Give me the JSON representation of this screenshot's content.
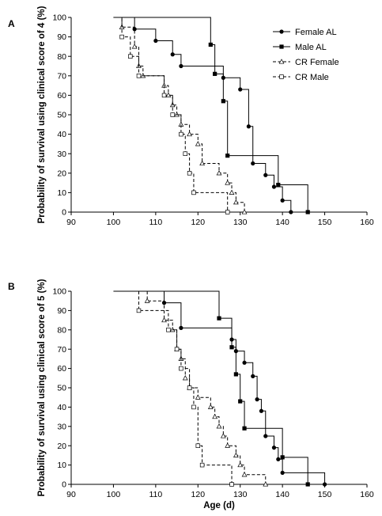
{
  "chart_data": [
    {
      "type": "line",
      "subtype": "kaplan-meier step",
      "panel_label": "A",
      "xlabel": "",
      "ylabel": "Probability of survival using clinical score of 4 (%)",
      "xlim": [
        90,
        160
      ],
      "ylim": [
        0,
        100
      ],
      "xticks": [
        90,
        100,
        110,
        120,
        130,
        140,
        150,
        160
      ],
      "yticks": [
        0,
        10,
        20,
        30,
        40,
        50,
        60,
        70,
        80,
        90,
        100
      ],
      "grid": false,
      "legend_position": "top-right",
      "series": [
        {
          "name": "Female AL",
          "line_style": "solid",
          "marker": "filled-circle",
          "points": [
            [
              105,
              100
            ],
            [
              105,
              94
            ],
            [
              110,
              94
            ],
            [
              110,
              88
            ],
            [
              114,
              88
            ],
            [
              114,
              81
            ],
            [
              116,
              81
            ],
            [
              116,
              75
            ],
            [
              126,
              75
            ],
            [
              126,
              69
            ],
            [
              130,
              69
            ],
            [
              130,
              63
            ],
            [
              132,
              63
            ],
            [
              132,
              44
            ],
            [
              133,
              44
            ],
            [
              133,
              25
            ],
            [
              136,
              25
            ],
            [
              136,
              19
            ],
            [
              138,
              19
            ],
            [
              138,
              13
            ],
            [
              140,
              13
            ],
            [
              140,
              6
            ],
            [
              142,
              6
            ],
            [
              142,
              0
            ]
          ]
        },
        {
          "name": "Male AL",
          "line_style": "solid",
          "marker": "filled-square",
          "points": [
            [
              100,
              100
            ],
            [
              123,
              100
            ],
            [
              123,
              86
            ],
            [
              124,
              86
            ],
            [
              124,
              71
            ],
            [
              126,
              71
            ],
            [
              126,
              57
            ],
            [
              127,
              57
            ],
            [
              127,
              29
            ],
            [
              139,
              29
            ],
            [
              139,
              14
            ],
            [
              146,
              14
            ],
            [
              146,
              0
            ]
          ]
        },
        {
          "name": "CR Female",
          "line_style": "dashed",
          "marker": "open-triangle",
          "points": [
            [
              102,
              100
            ],
            [
              102,
              95
            ],
            [
              105,
              95
            ],
            [
              105,
              85
            ],
            [
              106,
              85
            ],
            [
              106,
              75
            ],
            [
              107,
              75
            ],
            [
              107,
              70
            ],
            [
              112,
              70
            ],
            [
              112,
              65
            ],
            [
              113,
              65
            ],
            [
              113,
              60
            ],
            [
              114,
              60
            ],
            [
              114,
              55
            ],
            [
              115,
              55
            ],
            [
              115,
              50
            ],
            [
              116,
              50
            ],
            [
              116,
              45
            ],
            [
              118,
              45
            ],
            [
              118,
              40
            ],
            [
              120,
              40
            ],
            [
              120,
              35
            ],
            [
              121,
              35
            ],
            [
              121,
              25
            ],
            [
              125,
              25
            ],
            [
              125,
              20
            ],
            [
              127,
              20
            ],
            [
              127,
              15
            ],
            [
              128,
              15
            ],
            [
              128,
              10
            ],
            [
              129,
              10
            ],
            [
              129,
              5
            ],
            [
              131,
              5
            ],
            [
              131,
              0
            ]
          ]
        },
        {
          "name": "CR Male",
          "line_style": "dashed",
          "marker": "open-square",
          "points": [
            [
              100,
              100
            ],
            [
              102,
              100
            ],
            [
              102,
              90
            ],
            [
              104,
              90
            ],
            [
              104,
              80
            ],
            [
              106,
              80
            ],
            [
              106,
              70
            ],
            [
              112,
              70
            ],
            [
              112,
              60
            ],
            [
              114,
              60
            ],
            [
              114,
              50
            ],
            [
              116,
              50
            ],
            [
              116,
              40
            ],
            [
              117,
              40
            ],
            [
              117,
              30
            ],
            [
              118,
              30
            ],
            [
              118,
              20
            ],
            [
              119,
              20
            ],
            [
              119,
              10
            ],
            [
              127,
              10
            ],
            [
              127,
              0
            ]
          ]
        }
      ]
    },
    {
      "type": "line",
      "subtype": "kaplan-meier step",
      "panel_label": "B",
      "xlabel": "Age (d)",
      "ylabel": "Probability of survival  using clinical score of 5 (%)",
      "xlim": [
        90,
        160
      ],
      "ylim": [
        0,
        100
      ],
      "xticks": [
        90,
        100,
        110,
        120,
        130,
        140,
        150,
        160
      ],
      "yticks": [
        0,
        10,
        20,
        30,
        40,
        50,
        60,
        70,
        80,
        90,
        100
      ],
      "grid": false,
      "legend_position": "none",
      "series": [
        {
          "name": "Female AL",
          "line_style": "solid",
          "marker": "filled-circle",
          "points": [
            [
              112,
              100
            ],
            [
              112,
              94
            ],
            [
              116,
              94
            ],
            [
              116,
              81
            ],
            [
              128,
              81
            ],
            [
              128,
              75
            ],
            [
              129,
              75
            ],
            [
              129,
              69
            ],
            [
              131,
              69
            ],
            [
              131,
              63
            ],
            [
              133,
              63
            ],
            [
              133,
              56
            ],
            [
              134,
              56
            ],
            [
              134,
              44
            ],
            [
              135,
              44
            ],
            [
              135,
              38
            ],
            [
              136,
              38
            ],
            [
              136,
              25
            ],
            [
              138,
              25
            ],
            [
              138,
              19
            ],
            [
              139,
              19
            ],
            [
              139,
              13
            ],
            [
              140,
              13
            ],
            [
              140,
              6
            ],
            [
              150,
              6
            ],
            [
              150,
              0
            ]
          ]
        },
        {
          "name": "Male AL",
          "line_style": "solid",
          "marker": "filled-square",
          "points": [
            [
              100,
              100
            ],
            [
              125,
              100
            ],
            [
              125,
              86
            ],
            [
              128,
              86
            ],
            [
              128,
              71
            ],
            [
              129,
              71
            ],
            [
              129,
              57
            ],
            [
              130,
              57
            ],
            [
              130,
              43
            ],
            [
              131,
              43
            ],
            [
              131,
              29
            ],
            [
              140,
              29
            ],
            [
              140,
              14
            ],
            [
              146,
              14
            ],
            [
              146,
              0
            ]
          ]
        },
        {
          "name": "CR Female",
          "line_style": "dashed",
          "marker": "open-triangle",
          "points": [
            [
              108,
              100
            ],
            [
              108,
              95
            ],
            [
              112,
              95
            ],
            [
              112,
              85
            ],
            [
              114,
              85
            ],
            [
              114,
              80
            ],
            [
              115,
              80
            ],
            [
              115,
              70
            ],
            [
              116,
              70
            ],
            [
              116,
              65
            ],
            [
              117,
              65
            ],
            [
              117,
              55
            ],
            [
              118,
              55
            ],
            [
              118,
              50
            ],
            [
              120,
              50
            ],
            [
              120,
              45
            ],
            [
              123,
              45
            ],
            [
              123,
              40
            ],
            [
              124,
              40
            ],
            [
              124,
              35
            ],
            [
              125,
              35
            ],
            [
              125,
              30
            ],
            [
              126,
              30
            ],
            [
              126,
              25
            ],
            [
              127,
              25
            ],
            [
              127,
              20
            ],
            [
              129,
              20
            ],
            [
              129,
              15
            ],
            [
              130,
              15
            ],
            [
              130,
              10
            ],
            [
              131,
              10
            ],
            [
              131,
              5
            ],
            [
              136,
              5
            ],
            [
              136,
              0
            ]
          ]
        },
        {
          "name": "CR Male",
          "line_style": "dashed",
          "marker": "open-square",
          "points": [
            [
              106,
              100
            ],
            [
              106,
              90
            ],
            [
              113,
              90
            ],
            [
              113,
              80
            ],
            [
              115,
              80
            ],
            [
              115,
              70
            ],
            [
              116,
              70
            ],
            [
              116,
              60
            ],
            [
              118,
              60
            ],
            [
              118,
              50
            ],
            [
              119,
              50
            ],
            [
              119,
              40
            ],
            [
              120,
              40
            ],
            [
              120,
              20
            ],
            [
              121,
              20
            ],
            [
              121,
              10
            ],
            [
              128,
              10
            ],
            [
              128,
              0
            ]
          ]
        }
      ]
    }
  ]
}
